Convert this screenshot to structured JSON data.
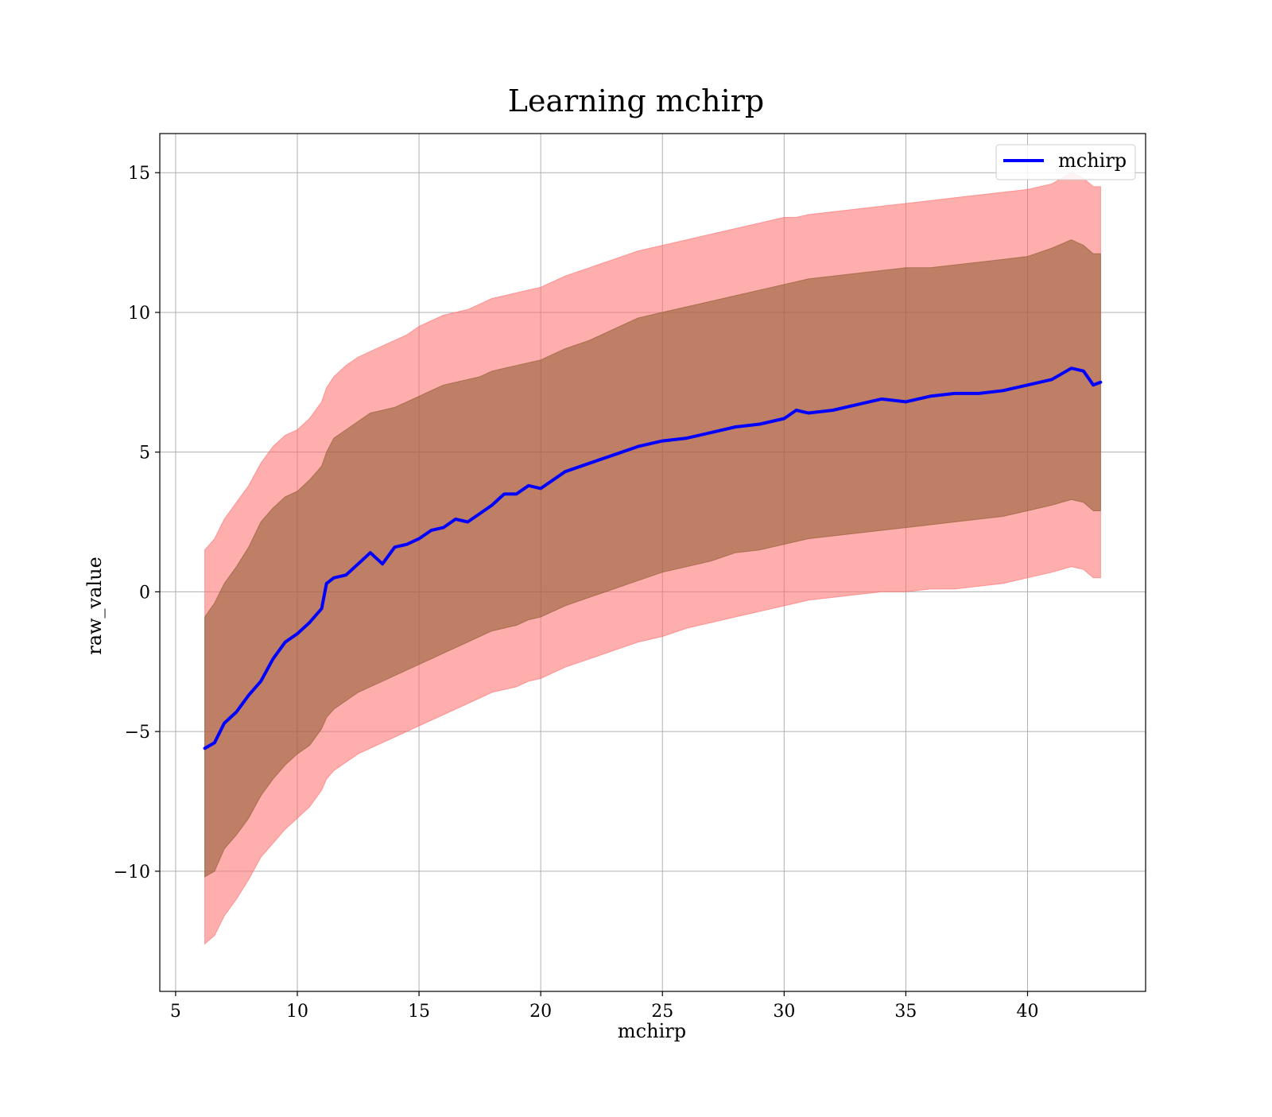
{
  "chart_data": {
    "type": "line",
    "title": "Learning mchirp",
    "xlabel": "mchirp",
    "ylabel": "raw_value",
    "xlim": [
      4.35,
      44.85
    ],
    "ylim": [
      -14.3,
      16.4
    ],
    "xticks": [
      5,
      10,
      15,
      20,
      25,
      30,
      35,
      40
    ],
    "xtick_labels": [
      "5",
      "10",
      "15",
      "20",
      "25",
      "30",
      "35",
      "40"
    ],
    "yticks": [
      -10,
      -5,
      0,
      5,
      10,
      15
    ],
    "ytick_labels": [
      "−10",
      "−5",
      "0",
      "5",
      "10",
      "15"
    ],
    "grid": true,
    "legend": {
      "position": "top-right",
      "entries": [
        {
          "label": "mchirp",
          "color": "#0000ff"
        }
      ]
    },
    "colors": {
      "line": "#0000ff",
      "outer_band": "#ff6b6b",
      "inner_band": "#8b5a2b"
    },
    "series": [
      {
        "name": "mchirp",
        "x": [
          6.2,
          6.6,
          7.0,
          7.5,
          8.0,
          8.5,
          9.0,
          9.5,
          10.0,
          10.5,
          11.0,
          11.2,
          11.5,
          12.0,
          12.5,
          13.0,
          13.5,
          14.0,
          14.5,
          15.0,
          15.5,
          16.0,
          16.5,
          17.0,
          17.5,
          18.0,
          18.5,
          19.0,
          19.5,
          20.0,
          21.0,
          22.0,
          23.0,
          24.0,
          25.0,
          26.0,
          27.0,
          28.0,
          29.0,
          30.0,
          30.5,
          31.0,
          32.0,
          33.0,
          34.0,
          35.0,
          36.0,
          37.0,
          38.0,
          39.0,
          40.0,
          41.0,
          41.8,
          42.3,
          42.7,
          43.0
        ],
        "y": [
          -5.6,
          -5.4,
          -4.7,
          -4.3,
          -3.7,
          -3.2,
          -2.4,
          -1.8,
          -1.5,
          -1.1,
          -0.6,
          0.3,
          0.5,
          0.6,
          1.0,
          1.4,
          1.0,
          1.6,
          1.7,
          1.9,
          2.2,
          2.3,
          2.6,
          2.5,
          2.8,
          3.1,
          3.5,
          3.5,
          3.8,
          3.7,
          4.3,
          4.6,
          4.9,
          5.2,
          5.4,
          5.5,
          5.7,
          5.9,
          6.0,
          6.2,
          6.5,
          6.4,
          6.5,
          6.7,
          6.9,
          6.8,
          7.0,
          7.1,
          7.1,
          7.2,
          7.4,
          7.6,
          8.0,
          7.9,
          7.4,
          7.5
        ],
        "inner_upper": [
          -0.9,
          -0.4,
          0.3,
          0.9,
          1.6,
          2.5,
          3.0,
          3.4,
          3.6,
          4.0,
          4.5,
          5.0,
          5.5,
          5.8,
          6.1,
          6.4,
          6.5,
          6.6,
          6.8,
          7.0,
          7.2,
          7.4,
          7.5,
          7.6,
          7.7,
          7.9,
          8.0,
          8.1,
          8.2,
          8.3,
          8.7,
          9.0,
          9.4,
          9.8,
          10.0,
          10.2,
          10.4,
          10.6,
          10.8,
          11.0,
          11.1,
          11.2,
          11.3,
          11.4,
          11.5,
          11.6,
          11.6,
          11.7,
          11.8,
          11.9,
          12.0,
          12.3,
          12.6,
          12.4,
          12.1,
          12.1
        ],
        "inner_lower": [
          -10.2,
          -10.0,
          -9.2,
          -8.7,
          -8.1,
          -7.3,
          -6.7,
          -6.2,
          -5.8,
          -5.5,
          -4.9,
          -4.5,
          -4.2,
          -3.9,
          -3.6,
          -3.4,
          -3.2,
          -3.0,
          -2.8,
          -2.6,
          -2.4,
          -2.2,
          -2.0,
          -1.8,
          -1.6,
          -1.4,
          -1.3,
          -1.2,
          -1.0,
          -0.9,
          -0.5,
          -0.2,
          0.1,
          0.4,
          0.7,
          0.9,
          1.1,
          1.4,
          1.5,
          1.7,
          1.8,
          1.9,
          2.0,
          2.1,
          2.2,
          2.3,
          2.4,
          2.5,
          2.6,
          2.7,
          2.9,
          3.1,
          3.3,
          3.2,
          2.9,
          2.9
        ],
        "outer_upper": [
          1.5,
          1.9,
          2.6,
          3.2,
          3.8,
          4.6,
          5.2,
          5.6,
          5.8,
          6.2,
          6.8,
          7.3,
          7.7,
          8.1,
          8.4,
          8.6,
          8.8,
          9.0,
          9.2,
          9.5,
          9.7,
          9.9,
          10.0,
          10.1,
          10.3,
          10.5,
          10.6,
          10.7,
          10.8,
          10.9,
          11.3,
          11.6,
          11.9,
          12.2,
          12.4,
          12.6,
          12.8,
          13.0,
          13.2,
          13.4,
          13.4,
          13.5,
          13.6,
          13.7,
          13.8,
          13.9,
          14.0,
          14.1,
          14.2,
          14.3,
          14.4,
          14.6,
          15.0,
          14.8,
          14.5,
          14.5
        ],
        "outer_lower": [
          -12.6,
          -12.3,
          -11.6,
          -11.0,
          -10.3,
          -9.5,
          -9.0,
          -8.5,
          -8.1,
          -7.7,
          -7.1,
          -6.7,
          -6.4,
          -6.1,
          -5.8,
          -5.6,
          -5.4,
          -5.2,
          -5.0,
          -4.8,
          -4.6,
          -4.4,
          -4.2,
          -4.0,
          -3.8,
          -3.6,
          -3.5,
          -3.4,
          -3.2,
          -3.1,
          -2.7,
          -2.4,
          -2.1,
          -1.8,
          -1.6,
          -1.3,
          -1.1,
          -0.9,
          -0.7,
          -0.5,
          -0.4,
          -0.3,
          -0.2,
          -0.1,
          0.0,
          0.0,
          0.1,
          0.1,
          0.2,
          0.3,
          0.5,
          0.7,
          0.9,
          0.8,
          0.5,
          0.5
        ]
      }
    ]
  }
}
